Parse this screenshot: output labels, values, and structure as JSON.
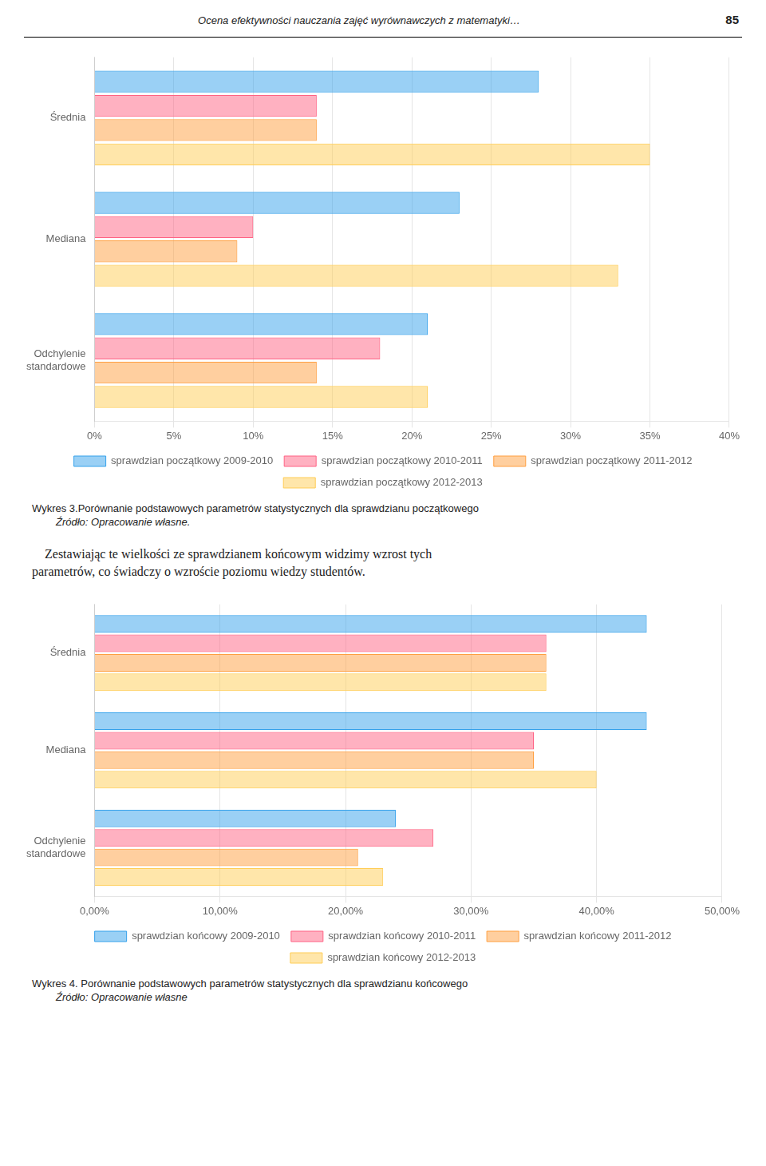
{
  "chart_data": [
    {
      "type": "bar",
      "orientation": "horizontal",
      "title": "Wykres 3.Porównanie podstawowych parametrów statystycznych dla sprawdzianu początkowego",
      "subtitle": "Źródło: Opracowanie własne.",
      "annotations": [
        "Ocena efektywności nauczania zajęć wyrównawczych z matematyki…",
        "85"
      ],
      "categories": [
        "Odchylenie\nstandardowe",
        "Mediana",
        "Średnia"
      ],
      "series": [
        {
          "name": "sprawdzian początkowy 2009-2010",
          "values": [
            0.21,
            0.23,
            0.28
          ]
        },
        {
          "name": "sprawdzian początkowy 2010-2011",
          "values": [
            0.18,
            0.1,
            0.14
          ]
        },
        {
          "name": "sprawdzian początkowy 2011-2012",
          "values": [
            0.14,
            0.09,
            0.14
          ]
        },
        {
          "name": "sprawdzian początkowy 2012-2013",
          "values": [
            0.21,
            0.33,
            0.35
          ]
        }
      ],
      "xlim": [
        0,
        0.4
      ],
      "xticks": [
        {
          "value": 0.0,
          "label": "0%"
        },
        {
          "value": 0.05,
          "label": "5%"
        },
        {
          "value": 0.1,
          "label": "10%"
        },
        {
          "value": 0.15,
          "label": "15%"
        },
        {
          "value": 0.2,
          "label": "20%"
        },
        {
          "value": 0.25,
          "label": "25%"
        },
        {
          "value": 0.3,
          "label": "30%"
        },
        {
          "value": 0.35,
          "label": "35%"
        },
        {
          "value": 0.4,
          "label": "40%"
        }
      ],
      "grid": "x",
      "legend": "bottom"
    },
    {
      "type": "bar",
      "orientation": "horizontal",
      "title": "Wykres 4. Porównanie podstawowych parametrów statystycznych dla sprawdzianu końcowego",
      "subtitle": "Źródło: Opracowanie własne",
      "annotations": [
        "    Zestawiając te wielkości ze sprawdzianem końcowym widzimy wzrost tych\nparametrów, co świadczy o wzroście poziomu wiedzy studentów."
      ],
      "categories": [
        "Odchylenie\nstandardowe",
        "Mediana",
        "Średnia"
      ],
      "series": [
        {
          "name": "sprawdzian końcowy 2009-2010",
          "values": [
            0.24,
            0.44,
            0.44
          ]
        },
        {
          "name": "sprawdzian końcowy 2010-2011",
          "values": [
            0.27,
            0.35,
            0.36
          ]
        },
        {
          "name": "sprawdzian końcowy 2011-2012",
          "values": [
            0.21,
            0.35,
            0.36
          ]
        },
        {
          "name": "sprawdzian końcowy 2012-2013",
          "values": [
            0.23,
            0.4,
            0.36
          ]
        }
      ],
      "xlim": [
        0,
        0.5
      ],
      "xticks": [
        {
          "value": 0.0,
          "label": "0,00%"
        },
        {
          "value": 0.1,
          "label": "10,00%"
        },
        {
          "value": 0.2,
          "label": "20,00%"
        },
        {
          "value": 0.3,
          "label": "30,00%"
        },
        {
          "value": 0.4,
          "label": "40,00%"
        },
        {
          "value": 0.5,
          "label": "50,00%"
        }
      ],
      "grid": "x",
      "legend": "bottom"
    }
  ]
}
